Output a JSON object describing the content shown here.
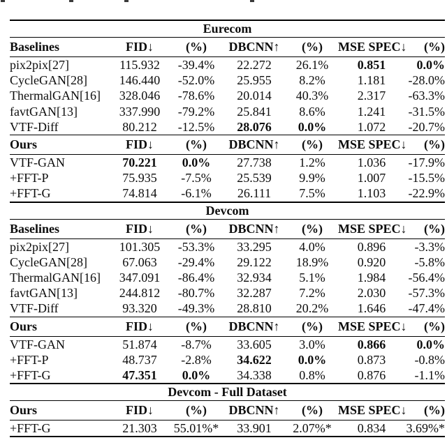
{
  "table": {
    "columns": [
      "FID↓",
      "(%)",
      "DBCNN↑",
      "(%)",
      "MSE SPEC↓",
      "(%)"
    ],
    "sections": [
      {
        "title": "Eurecom",
        "groups": [
          {
            "label": "Baselines",
            "rows": [
              {
                "label": "pix2pix[27]",
                "cells": [
                  "115.932",
                  "-39.4%",
                  "22.272",
                  "26.1%",
                  "0.851",
                  "0.0%"
                ],
                "bold": [
                  4,
                  5
                ]
              },
              {
                "label": "CycleGAN[28]",
                "cells": [
                  "146.440",
                  "-52.0%",
                  "25.955",
                  "8.2%",
                  "1.181",
                  "-28.0%"
                ],
                "bold": []
              },
              {
                "label": "ThermalGAN[16]",
                "cells": [
                  "328.046",
                  "-78.6%",
                  "20.014",
                  "40.3%",
                  "2.317",
                  "-63.3%"
                ],
                "bold": []
              },
              {
                "label": "favtGAN[13]",
                "cells": [
                  "337.990",
                  "-79.2%",
                  "25.841",
                  "8.6%",
                  "1.241",
                  "-31.5%"
                ],
                "bold": []
              },
              {
                "label": "VTF-Diff",
                "cells": [
                  "80.212",
                  "-12.5%",
                  "28.076",
                  "0.0%",
                  "1.072",
                  "-20.7%"
                ],
                "bold": [
                  2,
                  3
                ]
              }
            ]
          },
          {
            "label": "Ours",
            "rows": [
              {
                "label": "VTF-GAN",
                "cells": [
                  "70.221",
                  "0.0%",
                  "27.738",
                  "1.2%",
                  "1.036",
                  "-17.9%"
                ],
                "bold": [
                  0,
                  1
                ]
              },
              {
                "label": "+FFT-P",
                "cells": [
                  "75.935",
                  "-7.5%",
                  "25.539",
                  "9.9%",
                  "1.007",
                  "-15.5%"
                ],
                "bold": []
              },
              {
                "label": "+FFT-G",
                "cells": [
                  "74.814",
                  "-6.1%",
                  "26.111",
                  "7.5%",
                  "1.103",
                  "-22.9%"
                ],
                "bold": []
              }
            ]
          }
        ]
      },
      {
        "title": "Devcom",
        "groups": [
          {
            "label": "Baselines",
            "rows": [
              {
                "label": "pix2pix[27]",
                "cells": [
                  "101.305",
                  "-53.3%",
                  "33.295",
                  "4.0%",
                  "0.896",
                  "-3.3%"
                ],
                "bold": []
              },
              {
                "label": "CycleGAN[28]",
                "cells": [
                  "67.063",
                  "-29.4%",
                  "29.122",
                  "18.9%",
                  "0.920",
                  "-5.8%"
                ],
                "bold": []
              },
              {
                "label": "ThermalGAN[16]",
                "cells": [
                  "347.091",
                  "-86.4%",
                  "32.934",
                  "5.1%",
                  "1.984",
                  "-56.4%"
                ],
                "bold": []
              },
              {
                "label": "favtGAN[13]",
                "cells": [
                  "244.812",
                  "-80.7%",
                  "32.287",
                  "7.2%",
                  "2.030",
                  "-57.3%"
                ],
                "bold": []
              },
              {
                "label": "VTF-Diff",
                "cells": [
                  "93.320",
                  "-49.3%",
                  "28.810",
                  "20.2%",
                  "1.646",
                  "-47.4%"
                ],
                "bold": []
              }
            ]
          },
          {
            "label": "Ours",
            "rows": [
              {
                "label": "VTF-GAN",
                "cells": [
                  "51.874",
                  "-8.7%",
                  "33.605",
                  "3.0%",
                  "0.866",
                  "0.0%"
                ],
                "bold": [
                  4,
                  5
                ]
              },
              {
                "label": "+FFT-P",
                "cells": [
                  "48.737",
                  "-2.8%",
                  "34.622",
                  "0.0%",
                  "0.873",
                  "-0.8%"
                ],
                "bold": [
                  2,
                  3
                ]
              },
              {
                "label": "+FFT-G",
                "cells": [
                  "47.351",
                  "0.0%",
                  "34.338",
                  "0.8%",
                  "0.876",
                  "-1.1%"
                ],
                "bold": [
                  0,
                  1
                ]
              }
            ]
          }
        ]
      },
      {
        "title": "Devcom - Full Dataset",
        "groups": [
          {
            "label": "Ours",
            "rows": [
              {
                "label": "+FFT-G",
                "cells": [
                  "21.303",
                  "55.01%*",
                  "33.901",
                  "2.07%*",
                  "0.834",
                  "3.69%*"
                ],
                "bold": []
              }
            ]
          }
        ]
      }
    ]
  }
}
